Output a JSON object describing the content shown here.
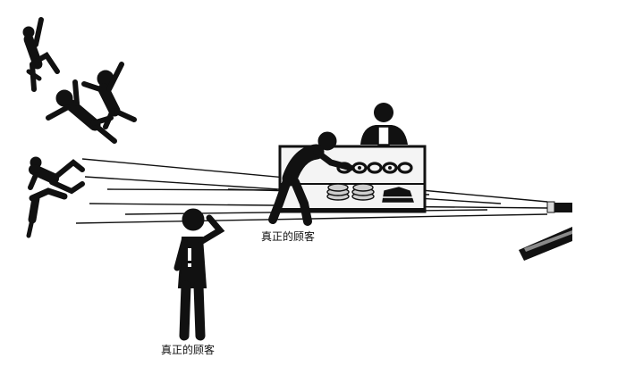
{
  "illustration": {
    "captions": {
      "shop_customer": "真正的顾客",
      "front_customer": "真正的顾客"
    },
    "palette": {
      "ink": "#111111",
      "background": "#ffffff",
      "stall_interior": "#f4f4f4",
      "plate": "#cfcfcf"
    },
    "icons": {
      "flashlight": "flashlight-icon",
      "exclamation": "exclamation-icon"
    }
  }
}
